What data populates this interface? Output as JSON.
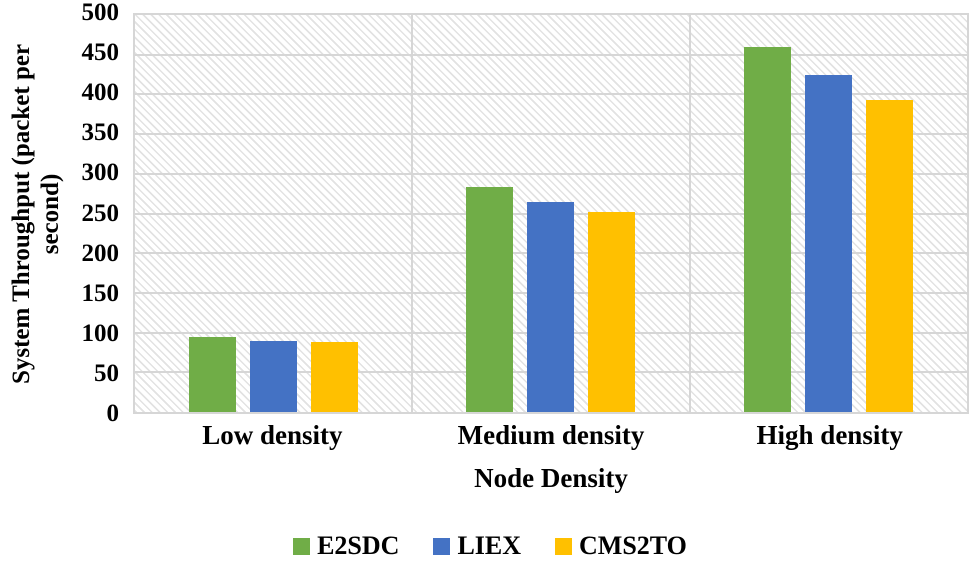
{
  "chart_data": {
    "type": "bar",
    "categories": [
      "Low density",
      "Medium density",
      "High density"
    ],
    "series": [
      {
        "name": "E2SDC",
        "color": "#70AD47",
        "values": [
          95,
          283,
          460
        ]
      },
      {
        "name": "LIEX",
        "color": "#4472C4",
        "values": [
          90,
          265,
          424
        ]
      },
      {
        "name": "CMS2TO",
        "color": "#FFC000",
        "values": [
          88,
          252,
          393
        ]
      }
    ],
    "title": "",
    "xlabel": "Node Density",
    "ylabel": "System Throughput (packet per second)",
    "ylabel_lines": [
      "System Throughput (packet per",
      "second)"
    ],
    "ylim": [
      0,
      500
    ],
    "ytick_step": 50,
    "grid": true,
    "plot_background": "light-diagonal-hatch",
    "legend_position": "bottom-center"
  },
  "colors": {
    "gridline": "#d6d6d6",
    "plot_border": "#d6d6d6",
    "hatch": "#e2e2e2",
    "text": "#000000",
    "background": "#ffffff"
  }
}
